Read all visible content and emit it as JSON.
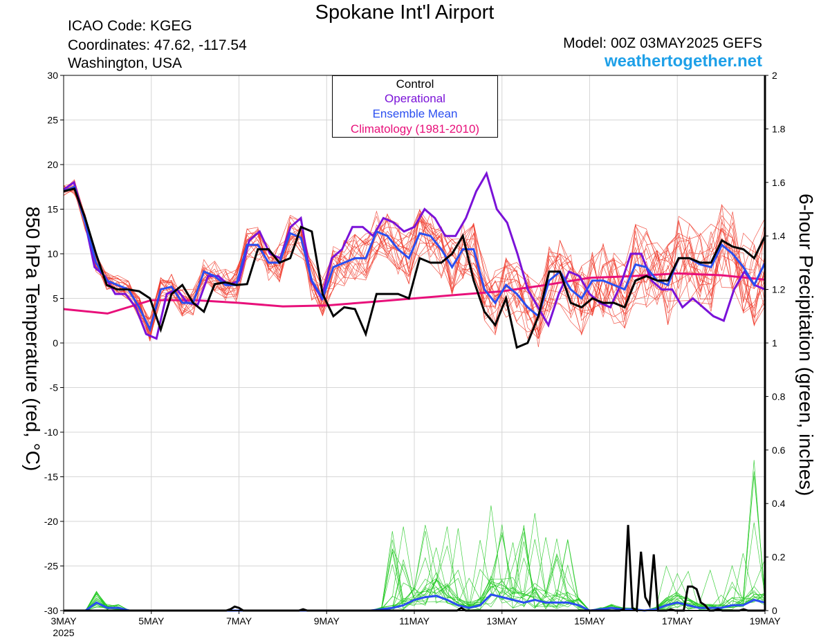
{
  "header": {
    "title": "Spokane Int'l Airport",
    "icao": "ICAO Code: KGEG",
    "coords": "Coordinates: 47.62, -117.54",
    "location": "Washington, USA",
    "model": "Model: 00Z 03MAY2025 GEFS",
    "site": "weathertogether.net"
  },
  "colors": {
    "members_temp": "#f03a2a",
    "members_precip": "#1ec81e",
    "control": "#000000",
    "operational": "#7a12d8",
    "mean": "#2a4ef0",
    "climatology": "#e8107a"
  },
  "chart_data": {
    "type": "line",
    "title": "Spokane Int'l Airport",
    "ylabel": "850 hPa Temperature (red, °C)",
    "y2label": "6-hour Precipitation (green, inches)",
    "xlim": [
      0,
      64
    ],
    "ylim": [
      -30,
      30
    ],
    "y2lim": [
      0,
      2
    ],
    "yticks": [
      30,
      25,
      20,
      15,
      10,
      5,
      0,
      -5,
      -10,
      -15,
      -20,
      -25,
      -30
    ],
    "y2ticks": [
      "2",
      "1.8",
      "1.6",
      "1.4",
      "1.2",
      "1",
      "0.8",
      "0.6",
      "0.4",
      "0.2",
      "0"
    ],
    "xticks": [
      {
        "x": 0,
        "label": "3MAY",
        "sub": "2025"
      },
      {
        "x": 8,
        "label": "5MAY"
      },
      {
        "x": 16,
        "label": "7MAY"
      },
      {
        "x": 24,
        "label": "9MAY"
      },
      {
        "x": 32,
        "label": "11MAY"
      },
      {
        "x": 40,
        "label": "13MAY"
      },
      {
        "x": 48,
        "label": "15MAY"
      },
      {
        "x": 56,
        "label": "17MAY"
      },
      {
        "x": 64,
        "label": "19MAY"
      }
    ],
    "legend": [
      "Control",
      "Operational",
      "Ensemble Mean",
      "Climatology (1981-2010)"
    ],
    "legend_position": "top-center",
    "temp_series": {
      "control": [
        17,
        17.3,
        14,
        10,
        6.5,
        6,
        6,
        5.8,
        5,
        1.5,
        5.5,
        6.5,
        4.5,
        3.5,
        6.6,
        6.8,
        6.5,
        6.6,
        10.5,
        10.5,
        9,
        9.5,
        13,
        12.5,
        5.5,
        3,
        4,
        3.8,
        1,
        5.5,
        5.5,
        5.5,
        5,
        9.5,
        9,
        9,
        10,
        12,
        7,
        3.5,
        2,
        5,
        -0.5,
        0,
        3,
        8,
        8,
        4.5,
        4,
        5,
        4.5,
        4.5,
        4,
        7,
        7.5,
        7,
        7,
        9.5,
        9.5,
        9,
        9,
        11.5,
        10.8,
        10.5,
        9.5,
        12
      ],
      "operational": [
        17.2,
        18,
        14,
        8.5,
        7.5,
        5.5,
        5.5,
        4,
        1,
        0.5,
        5.5,
        6,
        4.5,
        4.3,
        7.5,
        7.5,
        6.5,
        7,
        11.5,
        12.5,
        10,
        9.5,
        13,
        14,
        7,
        5,
        9.5,
        10.5,
        13,
        13,
        12,
        14,
        13.5,
        12.5,
        13,
        15,
        14,
        12,
        12,
        14,
        17,
        19,
        15,
        13.5,
        10,
        6,
        4,
        2,
        5.5,
        8,
        7.5,
        5.5,
        4.5,
        4,
        6.5,
        10,
        10,
        7,
        6,
        6,
        4,
        5,
        4,
        3,
        2.5,
        6,
        8,
        6.5,
        6
      ],
      "mean": [
        17,
        17.5,
        13.5,
        9,
        7,
        6.5,
        6,
        4,
        1.5,
        6,
        6.3,
        4.5,
        4.5,
        8,
        7.5,
        6.5,
        6.5,
        11,
        11,
        9,
        9,
        12.3,
        11.8,
        7,
        5,
        8.5,
        9,
        9.5,
        9.5,
        12.5,
        12,
        10.5,
        9.5,
        12.3,
        12,
        10.5,
        8.5,
        10.5,
        10.5,
        6,
        4.5,
        6.5,
        5.5,
        4,
        3,
        7,
        8,
        6,
        5,
        7,
        7,
        6.5,
        6,
        8.8,
        8.5,
        7,
        6.5,
        9.5,
        9.5,
        8.8,
        8.5,
        11,
        10,
        8.5,
        6.5,
        9
      ]
    },
    "climatology": [
      [
        0,
        3.8
      ],
      [
        4,
        3.3
      ],
      [
        8,
        4.8
      ],
      [
        12,
        4.8
      ],
      [
        16,
        4.5
      ],
      [
        20,
        4.1
      ],
      [
        24,
        4.2
      ],
      [
        28,
        4.6
      ],
      [
        32,
        5
      ],
      [
        36,
        5.4
      ],
      [
        40,
        5.8
      ],
      [
        44,
        6.5
      ],
      [
        48,
        7.3
      ],
      [
        52,
        7.5
      ],
      [
        56,
        7.8
      ],
      [
        60,
        7.6
      ],
      [
        64,
        7.1
      ]
    ],
    "precip_series": {
      "control": [
        0,
        0,
        0,
        0,
        0,
        0,
        0,
        0,
        0,
        0,
        0,
        0,
        0,
        0,
        0,
        0,
        0,
        0,
        0,
        0,
        0,
        0,
        0,
        0,
        0,
        0,
        0,
        0,
        0,
        0,
        0,
        0,
        0,
        0,
        0,
        0,
        0,
        0,
        0,
        0.005,
        0.015,
        0.01,
        0,
        0,
        0,
        0,
        0,
        0,
        0,
        0,
        0,
        0,
        0,
        0,
        0,
        0,
        0.005,
        0,
        0,
        0,
        0,
        0,
        0,
        0,
        0,
        0,
        0,
        0,
        0,
        0,
        0,
        0,
        0,
        0,
        0,
        0,
        0,
        0,
        0,
        0,
        0,
        0,
        0,
        0,
        0,
        0,
        0,
        0,
        0,
        0,
        0,
        0,
        0,
        0.01,
        0,
        0,
        0,
        0,
        0,
        0,
        0,
        0,
        0,
        0,
        0,
        0,
        0,
        0,
        0,
        0,
        0,
        0,
        0,
        0,
        0,
        0,
        0,
        0,
        0,
        0,
        0,
        0,
        0,
        0,
        0,
        0,
        0,
        0,
        0,
        0,
        0,
        0.005,
        0.32,
        0.01,
        0,
        0.22,
        0.05,
        0.02,
        0.21,
        0,
        0,
        0,
        0.005,
        0,
        0,
        0,
        0.09,
        0.09,
        0.08,
        0.03,
        0.02,
        0,
        0,
        0.005,
        0,
        0,
        0,
        0,
        0,
        0.005,
        0,
        0,
        0,
        0,
        0
      ],
      "mean": [
        0,
        0,
        0,
        0.03,
        0.01,
        0.01,
        0,
        0,
        0,
        0,
        0,
        0,
        0,
        0,
        0,
        0,
        0,
        0,
        0,
        0,
        0,
        0,
        0,
        0,
        0,
        0,
        0,
        0,
        0,
        0.005,
        0.01,
        0.02,
        0.04,
        0.05,
        0.055,
        0.04,
        0.02,
        0.01,
        0.02,
        0.06,
        0.05,
        0.04,
        0.03,
        0.04,
        0.03,
        0.03,
        0.03,
        0.02,
        0,
        0.005,
        0.01,
        0.005,
        0.005,
        0,
        0.005,
        0.02,
        0.03,
        0.02,
        0.01,
        0.01,
        0.01,
        0.02,
        0.02,
        0.04,
        0.03
      ]
    }
  }
}
